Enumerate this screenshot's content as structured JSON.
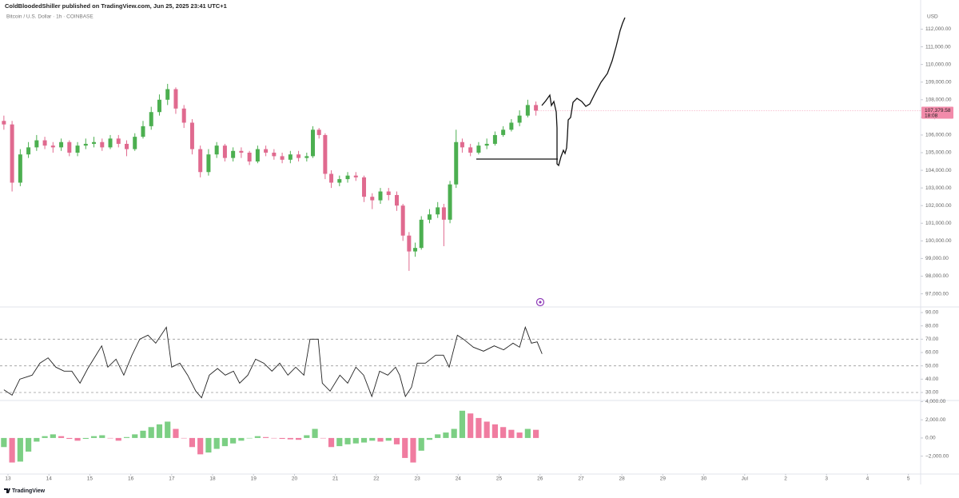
{
  "header": {
    "publisher": "ColdBloodedShiller published on TradingView.com, Jun 25, 2025 23:41 UTC+1",
    "symbol": "Bitcoin / U.S. Dollar · 1h · COINBASE",
    "currency": "USD"
  },
  "footer": {
    "brand": "TradingView"
  },
  "chart_data": [
    {
      "type": "candlestick",
      "up_color": "#4caf50",
      "down_color": "#e06a8f",
      "xlim": [
        12.805,
        35.3
      ],
      "ylim": [
        96300,
        113200
      ],
      "yticks": [
        {
          "value": 97000,
          "label": "97,000.00"
        },
        {
          "value": 98000,
          "label": "98,000.00"
        },
        {
          "value": 99000,
          "label": "99,000.00"
        },
        {
          "value": 100000,
          "label": "100,000.00"
        },
        {
          "value": 101000,
          "label": "101,000.00"
        },
        {
          "value": 102000,
          "label": "102,000.00"
        },
        {
          "value": 103000,
          "label": "103,000.00"
        },
        {
          "value": 104000,
          "label": "104,000.00"
        },
        {
          "value": 105000,
          "label": "105,000.00"
        },
        {
          "value": 106000,
          "label": "106,000.00"
        },
        {
          "value": 107000,
          "label": "107,000.00"
        },
        {
          "value": 108000,
          "label": "108,000.00"
        },
        {
          "value": 109000,
          "label": "109,000.00"
        },
        {
          "value": 110000,
          "label": "110,000.00"
        },
        {
          "value": 111000,
          "label": "111,000.00"
        },
        {
          "value": 112000,
          "label": "112,000.00"
        }
      ],
      "last_price": {
        "value": 107379.58,
        "label": "107,379.58"
      },
      "countdown": "18:08",
      "last_color": "#f28baa",
      "x": [
        12.9,
        13.1,
        13.3,
        13.5,
        13.7,
        13.9,
        14.1,
        14.3,
        14.5,
        14.7,
        14.9,
        15.1,
        15.3,
        15.5,
        15.7,
        15.9,
        16.1,
        16.3,
        16.5,
        16.7,
        16.9,
        17.1,
        17.3,
        17.5,
        17.7,
        17.9,
        18.1,
        18.3,
        18.5,
        18.7,
        18.9,
        19.1,
        19.3,
        19.5,
        19.7,
        19.9,
        20.1,
        20.3,
        20.45,
        20.6,
        20.75,
        20.9,
        21.1,
        21.3,
        21.5,
        21.7,
        21.9,
        22.1,
        22.3,
        22.5,
        22.65,
        22.8,
        22.95,
        23.1,
        23.3,
        23.5,
        23.65,
        23.8,
        23.95,
        24.1,
        24.3,
        24.5,
        24.7,
        24.9,
        25.1,
        25.3,
        25.5,
        25.7,
        25.9
      ],
      "open": [
        106800,
        106600,
        103300,
        104900,
        105300,
        105700,
        105400,
        105300,
        105600,
        105000,
        105400,
        105500,
        105600,
        105300,
        105800,
        105500,
        105200,
        105900,
        106500,
        107300,
        108000,
        108600,
        107500,
        106700,
        105200,
        103900,
        104900,
        105400,
        104700,
        105100,
        105000,
        104500,
        105200,
        105000,
        104800,
        104600,
        104900,
        104700,
        104800,
        106300,
        106000,
        103800,
        103300,
        103500,
        103700,
        103600,
        102500,
        102300,
        102800,
        102600,
        102000,
        100300,
        99400,
        99600,
        101200,
        101500,
        101900,
        101200,
        103200,
        105600,
        105300,
        105000,
        105400,
        105500,
        106000,
        106300,
        106700,
        107100,
        107700
      ],
      "high": [
        107100,
        106800,
        105200,
        105600,
        106000,
        105900,
        105600,
        105800,
        105700,
        105600,
        105800,
        105900,
        105800,
        106000,
        106000,
        105700,
        106100,
        106800,
        107600,
        108300,
        108900,
        108700,
        107700,
        106900,
        105400,
        105200,
        105600,
        105500,
        105300,
        105300,
        105100,
        105400,
        105400,
        105200,
        105000,
        105100,
        105100,
        105000,
        106500,
        106400,
        106100,
        104000,
        103700,
        103900,
        103900,
        103700,
        102700,
        103000,
        103000,
        102800,
        102100,
        100500,
        99900,
        101400,
        101800,
        102200,
        102100,
        103400,
        106300,
        105800,
        105500,
        105600,
        105800,
        106200,
        106500,
        106900,
        107400,
        108000,
        107900
      ],
      "low": [
        106300,
        102800,
        103100,
        104700,
        105100,
        105200,
        105000,
        105100,
        104800,
        104800,
        105200,
        105300,
        105100,
        105200,
        105300,
        104800,
        105100,
        105800,
        106300,
        107100,
        107700,
        107200,
        106400,
        104900,
        103600,
        103700,
        104700,
        104500,
        104500,
        104700,
        104300,
        104400,
        104800,
        104600,
        104400,
        104400,
        104500,
        104500,
        104700,
        105800,
        103500,
        103000,
        103100,
        103300,
        103400,
        102200,
        101800,
        102100,
        102300,
        101700,
        100000,
        98300,
        99100,
        99500,
        101000,
        101300,
        99700,
        101000,
        103000,
        105000,
        104800,
        104900,
        105200,
        105400,
        105900,
        106200,
        106500,
        107000,
        107100
      ],
      "close": [
        106600,
        103300,
        104900,
        105300,
        105700,
        105400,
        105300,
        105600,
        105000,
        105400,
        105500,
        105600,
        105300,
        105800,
        105500,
        105200,
        105900,
        106500,
        107300,
        108000,
        108600,
        107500,
        106700,
        105200,
        103900,
        104900,
        105400,
        104700,
        105100,
        105000,
        104500,
        105200,
        105000,
        104800,
        104600,
        104900,
        104700,
        104800,
        106300,
        106000,
        103800,
        103300,
        103500,
        103700,
        103600,
        102500,
        102300,
        102800,
        102600,
        102000,
        100300,
        99400,
        99600,
        101200,
        101500,
        101900,
        101200,
        103200,
        105600,
        105300,
        105000,
        105400,
        105500,
        106000,
        106300,
        106700,
        107100,
        107700,
        107380
      ]
    },
    {
      "type": "line",
      "color": "#222222",
      "level_color": "#9a9a9a",
      "xlim": [
        12.805,
        35.3
      ],
      "ylim": [
        24.6,
        93.6
      ],
      "yticks": [
        {
          "value": 30,
          "label": "30.00"
        },
        {
          "value": 40,
          "label": "40.00"
        },
        {
          "value": 50,
          "label": "50.00"
        },
        {
          "value": 60,
          "label": "60.00"
        },
        {
          "value": 70,
          "label": "70.00"
        },
        {
          "value": 80,
          "label": "80.00"
        },
        {
          "value": 90,
          "label": "90.00"
        }
      ],
      "levels": [
        70,
        50,
        30
      ],
      "x": [
        12.9,
        13.1,
        13.29,
        13.59,
        13.78,
        13.98,
        14.17,
        14.37,
        14.56,
        14.76,
        14.95,
        15.15,
        15.29,
        15.44,
        15.64,
        15.83,
        16.03,
        16.22,
        16.42,
        16.61,
        16.87,
        17.0,
        17.2,
        17.39,
        17.59,
        17.73,
        17.92,
        18.12,
        18.31,
        18.51,
        18.66,
        18.86,
        19.05,
        19.25,
        19.45,
        19.64,
        19.84,
        20.03,
        20.23,
        20.38,
        20.58,
        20.68,
        20.87,
        21.11,
        21.3,
        21.5,
        21.69,
        21.89,
        22.08,
        22.28,
        22.47,
        22.57,
        22.71,
        22.86,
        23.0,
        23.2,
        23.45,
        23.64,
        23.78,
        23.98,
        24.13,
        24.37,
        24.62,
        24.88,
        25.11,
        25.34,
        25.5,
        25.64,
        25.79,
        25.93,
        26.05
      ],
      "values": [
        32,
        28,
        40,
        43,
        52,
        56,
        49,
        46,
        46,
        37,
        48,
        58,
        65,
        49,
        55,
        43,
        58,
        70,
        73,
        67,
        79,
        49,
        52,
        43,
        31,
        26,
        43,
        48,
        43,
        46,
        37,
        43,
        55,
        52,
        46,
        52,
        43,
        49,
        43,
        70,
        70,
        37,
        31,
        43,
        37,
        49,
        43,
        27,
        46,
        43,
        49,
        43,
        27,
        34,
        52,
        52,
        58,
        58,
        49,
        73,
        70,
        64,
        61,
        65,
        62,
        67,
        64,
        79,
        67,
        68,
        59
      ]
    },
    {
      "type": "bar",
      "rising_color": "#7ccf84",
      "falling_color": "#f07ca0",
      "xlim": [
        12.805,
        35.3
      ],
      "ylim": [
        -3880,
        4040
      ],
      "yticks": [
        {
          "value": -2000,
          "label": "−2,000.00"
        },
        {
          "value": 0,
          "label": "0.00"
        },
        {
          "value": 2000,
          "label": "2,000.00"
        },
        {
          "value": 4000,
          "label": "4,000.00"
        }
      ],
      "xticks": [
        13,
        14,
        15,
        16,
        17,
        18,
        19,
        20,
        21,
        22,
        23,
        24,
        25,
        26,
        27,
        28,
        29,
        30,
        {
          "value": 31,
          "label": "Jul"
        },
        {
          "value": 32,
          "label": "2"
        },
        {
          "value": 33,
          "label": "3"
        },
        {
          "value": 34,
          "label": "4"
        },
        {
          "value": 35,
          "label": "5"
        }
      ],
      "x": [
        12.9,
        13.1,
        13.3,
        13.5,
        13.7,
        13.9,
        14.1,
        14.3,
        14.5,
        14.7,
        14.9,
        15.1,
        15.3,
        15.5,
        15.7,
        15.9,
        16.1,
        16.3,
        16.5,
        16.7,
        16.9,
        17.1,
        17.3,
        17.5,
        17.7,
        17.9,
        18.1,
        18.3,
        18.5,
        18.7,
        18.9,
        19.1,
        19.3,
        19.5,
        19.7,
        19.9,
        20.1,
        20.3,
        20.5,
        20.7,
        20.9,
        21.1,
        21.3,
        21.5,
        21.7,
        21.9,
        22.1,
        22.3,
        22.5,
        22.7,
        22.9,
        23.1,
        23.3,
        23.5,
        23.7,
        23.9,
        24.1,
        24.3,
        24.5,
        24.7,
        24.9,
        25.1,
        25.3,
        25.5,
        25.7,
        25.9
      ],
      "values": [
        -1000,
        -2700,
        -2600,
        -1500,
        -400,
        200,
        400,
        200,
        -100,
        -300,
        -100,
        200,
        300,
        0,
        -300,
        100,
        400,
        800,
        1200,
        1500,
        1800,
        1000,
        0,
        -1000,
        -1800,
        -1600,
        -1200,
        -900,
        -600,
        -300,
        0,
        200,
        100,
        0,
        -100,
        -150,
        -200,
        300,
        1000,
        0,
        -1000,
        -900,
        -700,
        -600,
        -500,
        -300,
        -400,
        -300,
        -700,
        -2200,
        -2700,
        -1400,
        -200,
        400,
        600,
        1000,
        3000,
        2700,
        2200,
        1800,
        1500,
        1200,
        900,
        600,
        1000,
        900
      ]
    }
  ]
}
